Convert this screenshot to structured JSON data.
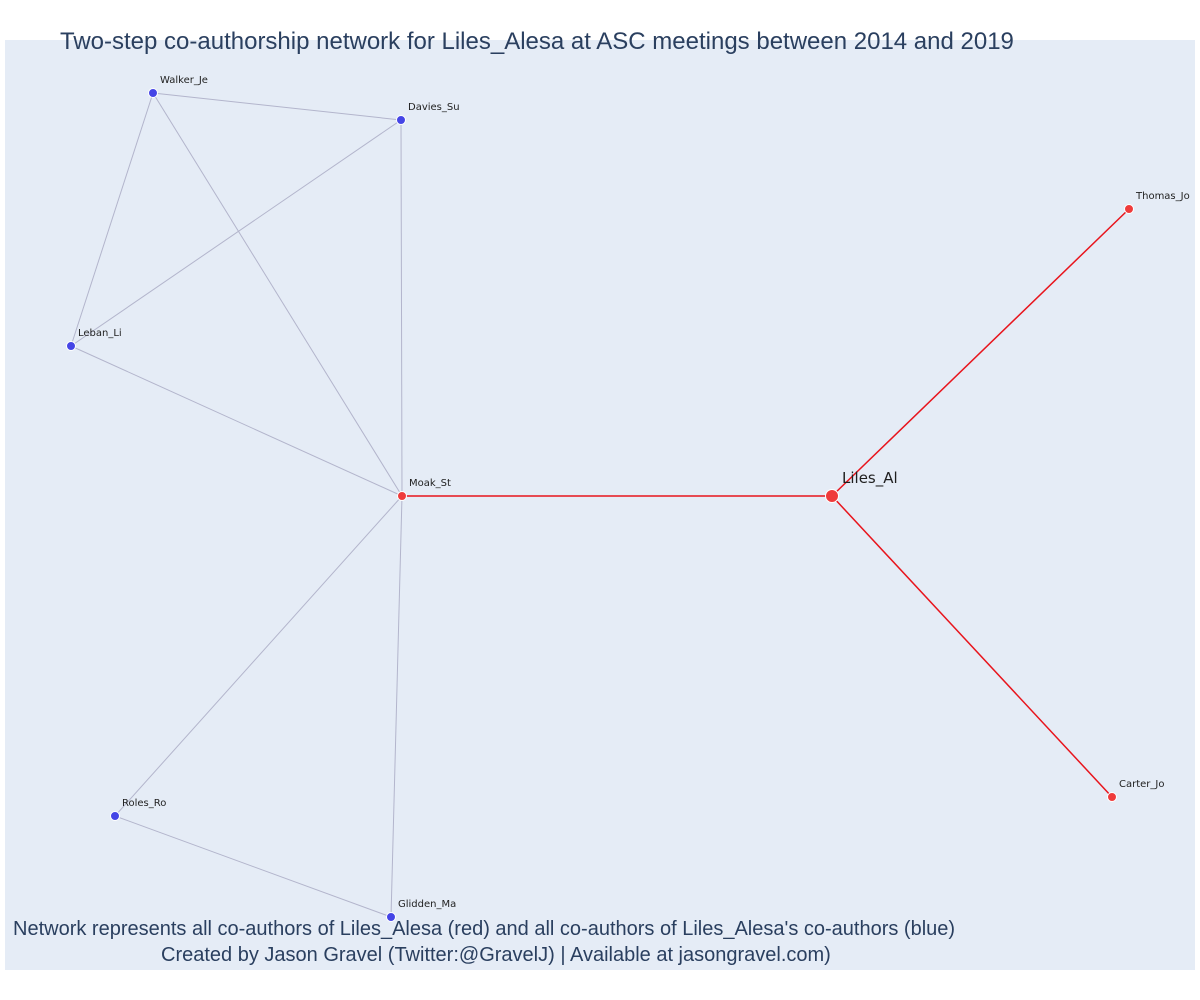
{
  "title": "Two-step co-authorship network for Liles_Alesa at ASC meetings between 2014 and 2019",
  "caption": {
    "line1": "Network represents all co-authors of Liles_Alesa (red) and all co-authors of Liles_Alesa's co-authors (blue)",
    "line2": "Created by Jason Gravel (Twitter:@GravelJ) | Available at jasongravel.com)"
  },
  "colors": {
    "plot_background": "#e5ecf6",
    "first_degree": "#ef3b3b",
    "second_degree": "#4545e6",
    "first_degree_edge": "#e8141c",
    "second_degree_edge": "#b3b5cc",
    "text": "#2a3f5f"
  },
  "nodes": [
    {
      "id": "Liles_Al",
      "label": "Liles_Al",
      "group": "focal"
    },
    {
      "id": "Moak_St",
      "label": "Moak_St",
      "group": "first_degree"
    },
    {
      "id": "Thomas_Jo",
      "label": "Thomas_Jo",
      "group": "first_degree"
    },
    {
      "id": "Carter_Jo",
      "label": "Carter_Jo",
      "group": "first_degree"
    },
    {
      "id": "Walker_Je",
      "label": "Walker_Je",
      "group": "second_degree"
    },
    {
      "id": "Davies_Su",
      "label": "Davies_Su",
      "group": "second_degree"
    },
    {
      "id": "Leban_Li",
      "label": "Leban_Li",
      "group": "second_degree"
    },
    {
      "id": "Roles_Ro",
      "label": "Roles_Ro",
      "group": "second_degree"
    },
    {
      "id": "Glidden_Ma",
      "label": "Glidden_Ma",
      "group": "second_degree"
    }
  ],
  "edges": [
    {
      "source": "Liles_Al",
      "target": "Moak_St",
      "group": "first_degree"
    },
    {
      "source": "Liles_Al",
      "target": "Thomas_Jo",
      "group": "first_degree"
    },
    {
      "source": "Liles_Al",
      "target": "Carter_Jo",
      "group": "first_degree"
    },
    {
      "source": "Walker_Je",
      "target": "Davies_Su",
      "group": "second_degree"
    },
    {
      "source": "Walker_Je",
      "target": "Leban_Li",
      "group": "second_degree"
    },
    {
      "source": "Walker_Je",
      "target": "Moak_St",
      "group": "second_degree"
    },
    {
      "source": "Davies_Su",
      "target": "Leban_Li",
      "group": "second_degree"
    },
    {
      "source": "Davies_Su",
      "target": "Moak_St",
      "group": "second_degree"
    },
    {
      "source": "Leban_Li",
      "target": "Moak_St",
      "group": "second_degree"
    },
    {
      "source": "Moak_St",
      "target": "Roles_Ro",
      "group": "second_degree"
    },
    {
      "source": "Moak_St",
      "target": "Glidden_Ma",
      "group": "second_degree"
    },
    {
      "source": "Roles_Ro",
      "target": "Glidden_Ma",
      "group": "second_degree"
    }
  ]
}
